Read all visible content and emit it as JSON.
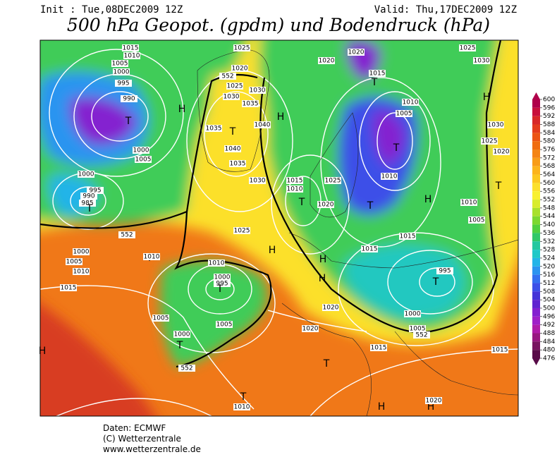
{
  "header": {
    "init": "Init : Tue,08DEC2009 12Z",
    "valid": "Valid: Thu,17DEC2009 12Z",
    "title": "500 hPa Geopot. (gpdm) und Bodendruck (hPa)"
  },
  "footer": {
    "source": "Daten: ECMWF",
    "copyright": "(C) Wetterzentrale",
    "url": "www.wetterzentrale.de"
  },
  "colorbar": {
    "ticks": [
      600,
      596,
      592,
      588,
      584,
      580,
      576,
      572,
      568,
      564,
      560,
      556,
      552,
      548,
      544,
      540,
      536,
      532,
      528,
      524,
      520,
      516,
      512,
      508,
      504,
      500,
      496,
      492,
      488,
      484,
      480,
      476
    ],
    "colors": [
      "#b0004a",
      "#c8103c",
      "#d82828",
      "#e43c1c",
      "#ec5414",
      "#f06c10",
      "#f48414",
      "#f89c18",
      "#fcb41c",
      "#fcc820",
      "#fce02c",
      "#f8f030",
      "#d8ec2c",
      "#a8e02c",
      "#7cd830",
      "#50d040",
      "#30c868",
      "#24c8a0",
      "#20c8c8",
      "#24b4e8",
      "#2c94f0",
      "#3470f0",
      "#3c50e8",
      "#4434d8",
      "#6024d0",
      "#8420d0",
      "#a020c8",
      "#b01ca8",
      "#981880",
      "#781460",
      "#580c48"
    ]
  },
  "map_labels": [
    "1015",
    "1010",
    "1005",
    "1000",
    "995",
    "990",
    "T",
    "H",
    "1000",
    "1005",
    "1000",
    "995",
    "990",
    "985",
    "T",
    "552",
    "1000",
    "1005",
    "1010",
    "1015",
    "T",
    "1010",
    "1010",
    "1000",
    "995",
    "T",
    "1005",
    "1005",
    "1000",
    "T",
    "552",
    "1025",
    "1020",
    "552",
    "1025",
    "1030",
    "1030",
    "1035",
    "1040",
    "1035",
    "T",
    "1040",
    "1035",
    "H",
    "1030",
    "1025",
    "H",
    "1015",
    "1010",
    "T",
    "1025",
    "1020",
    "T",
    "1020",
    "1020",
    "1015",
    "T",
    "1010",
    "1005",
    "T",
    "1010",
    "H",
    "1025",
    "1030",
    "H",
    "1030",
    "1025",
    "1020",
    "T",
    "1010",
    "1005",
    "1015",
    "1015",
    "H",
    "H",
    "995",
    "T",
    "1020",
    "1020",
    "1000",
    "1005",
    "552",
    "1015",
    "T",
    "1015",
    "T",
    "1010",
    "H",
    "H",
    "1020",
    "H"
  ]
}
